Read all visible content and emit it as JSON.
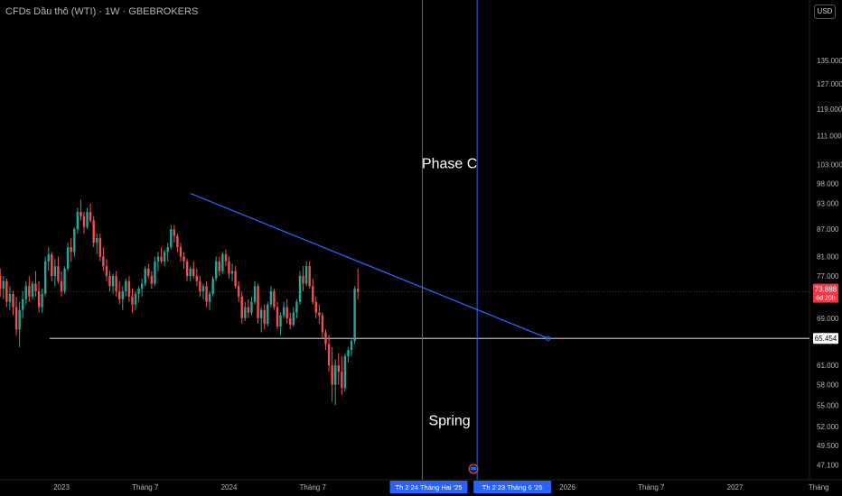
{
  "header": {
    "title": "CFDs Dầu thô (WTI) · 1W · GBEBROKERS",
    "currency": "USD"
  },
  "chart_data": {
    "type": "candlestick",
    "y_scale": "log",
    "ylim": [
      45.5,
      148
    ],
    "y_ticks": [
      "135.000",
      "127.000",
      "119.000",
      "111.000",
      "103.000",
      "98.000",
      "93.000",
      "87.000",
      "81.000",
      "77.000",
      "69.000",
      "61.000",
      "58.000",
      "55.000",
      "52.000",
      "49.500",
      "47.100"
    ],
    "x_ticks": [
      "2023",
      "Tháng 7",
      "2024",
      "Tháng 7",
      "2026",
      "Tháng 7",
      "2027",
      "Tháng"
    ],
    "colors": {
      "up": "#26a69a",
      "down": "#ef5350",
      "trendline": "#2962ff",
      "support": "#b2b5be",
      "current": "#f23645"
    },
    "current_price": {
      "value": 73.888,
      "label": "73.888",
      "countdown": "6d 20h"
    },
    "support_line": {
      "value": 65.454,
      "label": "65.454"
    },
    "trendline": {
      "start": {
        "date": "2023-10-09",
        "price": 95.5
      },
      "end": {
        "date": "2025-11-24",
        "price": 65.454
      }
    },
    "vertical_markers": [
      {
        "date": "2025-02-24",
        "label": "Th 2 24 Tháng Hai '25"
      },
      {
        "date": "2025-06-23",
        "label": "Th 2 23 Tháng 6 '25"
      }
    ],
    "annotations": [
      {
        "text": "Phase C",
        "date": "2025-04-24",
        "price": 102
      },
      {
        "text": "Spring",
        "date": "2025-04-24",
        "price": 52.2
      }
    ],
    "candles": [
      [
        98,
        101,
        93,
        95.5
      ],
      [
        95.5,
        99,
        89,
        91
      ],
      [
        91,
        94,
        84,
        86
      ],
      [
        86,
        92,
        83,
        90
      ],
      [
        90,
        95,
        87,
        93
      ],
      [
        93,
        93.5,
        85,
        86.5
      ],
      [
        86.5,
        88,
        80,
        81.5
      ],
      [
        81.5,
        85,
        77,
        83.5
      ],
      [
        83.5,
        84.5,
        76.5,
        78
      ],
      [
        78,
        82,
        76,
        80.5
      ],
      [
        80.5,
        81,
        75,
        76
      ],
      [
        76,
        79,
        74.5,
        77.5
      ],
      [
        77.5,
        80,
        75.5,
        79
      ],
      [
        79,
        81,
        76,
        77
      ],
      [
        77,
        78.5,
        73,
        74.5
      ],
      [
        74.5,
        77,
        72.5,
        76
      ],
      [
        76,
        76.5,
        71,
        72
      ],
      [
        72,
        75,
        70.5,
        73.5
      ],
      [
        73.5,
        74,
        69.5,
        71
      ],
      [
        71,
        73,
        66,
        67
      ],
      [
        67,
        72,
        64,
        70.5
      ],
      [
        70.5,
        74,
        69,
        72.5
      ],
      [
        72.5,
        76,
        71.5,
        75
      ],
      [
        75,
        77,
        72,
        73
      ],
      [
        73,
        76,
        72.5,
        75.5
      ],
      [
        75.5,
        78,
        73,
        74
      ],
      [
        74,
        76,
        70,
        71
      ],
      [
        71,
        74.5,
        70,
        73.5
      ],
      [
        73.5,
        81,
        73,
        80
      ],
      [
        80,
        83,
        78,
        81.5
      ],
      [
        81.5,
        82,
        76,
        77
      ],
      [
        77,
        80.5,
        75,
        79
      ],
      [
        79,
        81,
        75.5,
        76
      ],
      [
        76,
        78,
        73,
        74
      ],
      [
        74,
        79,
        73.5,
        78.5
      ],
      [
        78.5,
        84,
        78,
        83
      ],
      [
        83,
        85,
        80,
        82
      ],
      [
        82,
        87.5,
        81,
        87
      ],
      [
        87,
        92,
        86,
        91
      ],
      [
        91,
        94,
        89,
        90
      ],
      [
        90,
        91,
        86,
        87.5
      ],
      [
        87.5,
        92,
        87,
        91
      ],
      [
        91,
        93,
        88.5,
        89
      ],
      [
        89,
        90,
        83,
        84
      ],
      [
        84,
        86,
        81.5,
        85
      ],
      [
        85,
        86,
        80,
        81
      ],
      [
        81,
        83,
        78,
        79
      ],
      [
        79,
        80.5,
        76,
        77
      ],
      [
        77,
        78,
        74,
        75
      ],
      [
        75,
        77.5,
        73.5,
        77
      ],
      [
        77,
        78,
        73,
        74
      ],
      [
        74,
        76,
        71.5,
        72.5
      ],
      [
        72.5,
        75,
        70.5,
        74
      ],
      [
        74,
        76.5,
        73,
        76
      ],
      [
        76,
        77,
        72,
        73
      ],
      [
        73,
        74.5,
        70,
        71.5
      ],
      [
        71.5,
        74,
        70.5,
        73.5
      ],
      [
        73.5,
        75,
        72,
        74.5
      ],
      [
        74.5,
        76.5,
        73,
        75.5
      ],
      [
        75.5,
        79,
        75,
        78.5
      ],
      [
        78.5,
        79.5,
        76.5,
        77
      ],
      [
        77,
        78,
        74.5,
        75.5
      ],
      [
        75.5,
        81,
        75,
        80
      ],
      [
        80,
        82,
        78,
        81
      ],
      [
        81,
        83,
        79.5,
        80
      ],
      [
        80,
        82.5,
        79,
        82
      ],
      [
        82,
        84,
        80,
        83
      ],
      [
        83,
        88,
        82.5,
        87
      ],
      [
        87,
        88,
        84,
        85.5
      ],
      [
        85.5,
        86,
        82,
        83
      ],
      [
        83,
        84,
        80,
        81
      ],
      [
        81,
        82,
        78.5,
        80
      ],
      [
        80,
        80.5,
        76,
        77
      ],
      [
        77,
        79,
        76,
        78.5
      ],
      [
        78.5,
        80,
        76.5,
        77
      ],
      [
        77,
        78.5,
        75,
        76
      ],
      [
        76,
        77,
        73,
        74
      ],
      [
        74,
        75.5,
        72.5,
        75
      ],
      [
        75,
        76,
        71,
        72
      ],
      [
        72,
        74,
        70.5,
        73.5
      ],
      [
        73.5,
        77,
        73,
        76.5
      ],
      [
        76.5,
        81,
        76,
        80
      ],
      [
        80,
        81,
        77,
        78
      ],
      [
        78,
        82,
        77.5,
        81.5
      ],
      [
        81.5,
        82.5,
        79,
        80
      ],
      [
        80,
        81,
        76.5,
        77.5
      ],
      [
        77.5,
        79.5,
        76,
        78
      ],
      [
        78,
        79,
        74.5,
        75
      ],
      [
        75,
        76,
        72,
        73
      ],
      [
        73,
        74,
        68,
        69
      ],
      [
        69,
        72,
        68.5,
        71
      ],
      [
        71,
        72.5,
        69,
        70
      ],
      [
        70,
        73,
        69.5,
        72
      ],
      [
        72,
        76,
        71.5,
        75
      ],
      [
        75,
        75.5,
        68,
        69
      ],
      [
        69,
        71,
        66.5,
        70.5
      ],
      [
        70.5,
        71.5,
        67,
        68
      ],
      [
        68,
        72,
        67.5,
        71.5
      ],
      [
        71.5,
        75,
        71,
        74
      ],
      [
        74,
        74.5,
        70.5,
        71
      ],
      [
        71,
        72,
        67,
        67.5
      ],
      [
        67.5,
        70,
        66,
        69.5
      ],
      [
        69.5,
        72,
        69,
        71
      ],
      [
        71,
        72.5,
        68,
        69
      ],
      [
        69,
        70,
        67,
        67.8
      ],
      [
        67.8,
        71,
        67.5,
        70
      ],
      [
        70,
        72.5,
        69,
        72
      ],
      [
        72,
        78,
        71.5,
        77
      ],
      [
        77,
        79,
        74,
        75.5
      ],
      [
        75.5,
        80,
        75,
        79
      ],
      [
        79,
        80,
        74.5,
        75
      ],
      [
        75,
        76.5,
        71.5,
        72
      ],
      [
        72,
        73,
        69,
        70
      ],
      [
        70,
        71.5,
        68,
        69.5
      ],
      [
        69.5,
        70,
        65.5,
        66.5
      ],
      [
        66.5,
        67,
        63.5,
        64.5
      ],
      [
        64.5,
        66,
        60,
        61
      ],
      [
        61,
        64,
        55.5,
        58
      ],
      [
        58,
        62,
        55,
        61
      ],
      [
        61,
        63,
        58,
        60
      ],
      [
        60,
        62.5,
        56.5,
        57.5
      ],
      [
        57.5,
        63,
        57,
        62.5
      ],
      [
        62.5,
        64,
        61.5,
        63.5
      ],
      [
        63.5,
        65.5,
        62.5,
        65
      ],
      [
        65,
        75,
        64.5,
        74.5
      ],
      [
        74.5,
        78.5,
        72.5,
        73.888
      ]
    ]
  }
}
